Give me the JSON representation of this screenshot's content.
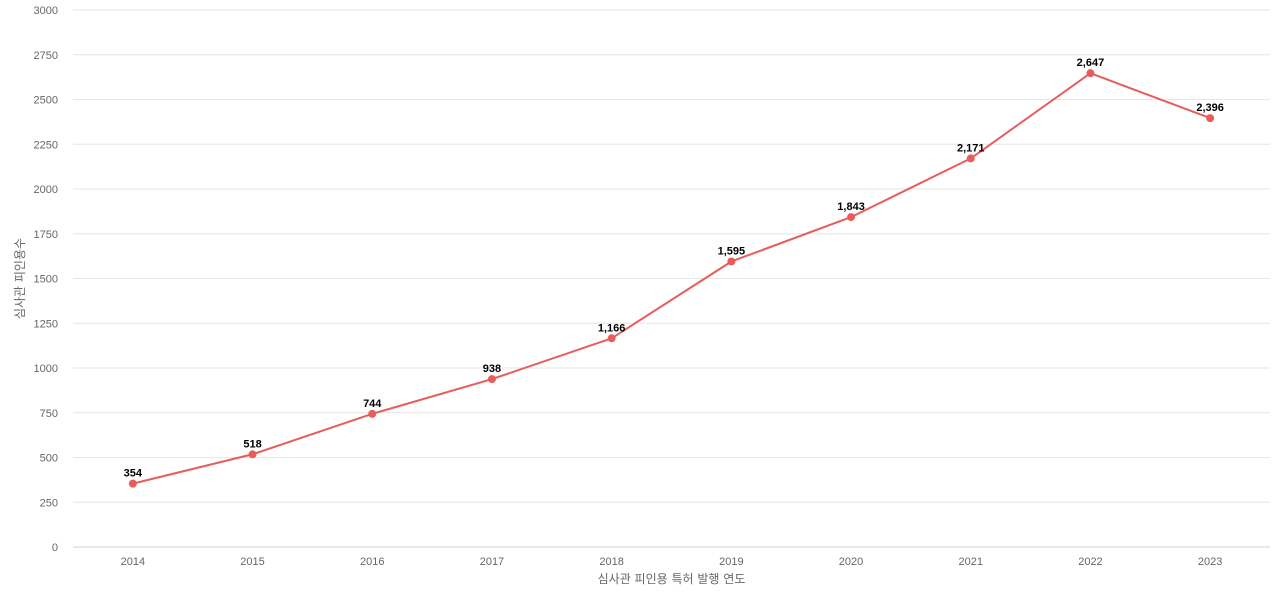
{
  "chart_data": {
    "type": "line",
    "title": "",
    "xlabel": "심사관 피인용 특허 발행 연도",
    "ylabel": "심사관 피인용수",
    "categories": [
      "2014",
      "2015",
      "2016",
      "2017",
      "2018",
      "2019",
      "2020",
      "2021",
      "2022",
      "2023"
    ],
    "series": [
      {
        "values": [
          354,
          518,
          744,
          938,
          1166,
          1595,
          1843,
          2171,
          2647,
          2396
        ],
        "labels": [
          "354",
          "518",
          "744",
          "938",
          "1,166",
          "1,595",
          "1,843",
          "2,171",
          "2,647",
          "2,396"
        ],
        "color": "#e85c5c"
      }
    ],
    "ylim": [
      0,
      3000
    ],
    "yticks": [
      "0",
      "250",
      "500",
      "750",
      "1000",
      "1250",
      "1500",
      "1750",
      "2000",
      "2250",
      "2500",
      "2750",
      "3000"
    ],
    "grid": true,
    "legend": "none"
  }
}
